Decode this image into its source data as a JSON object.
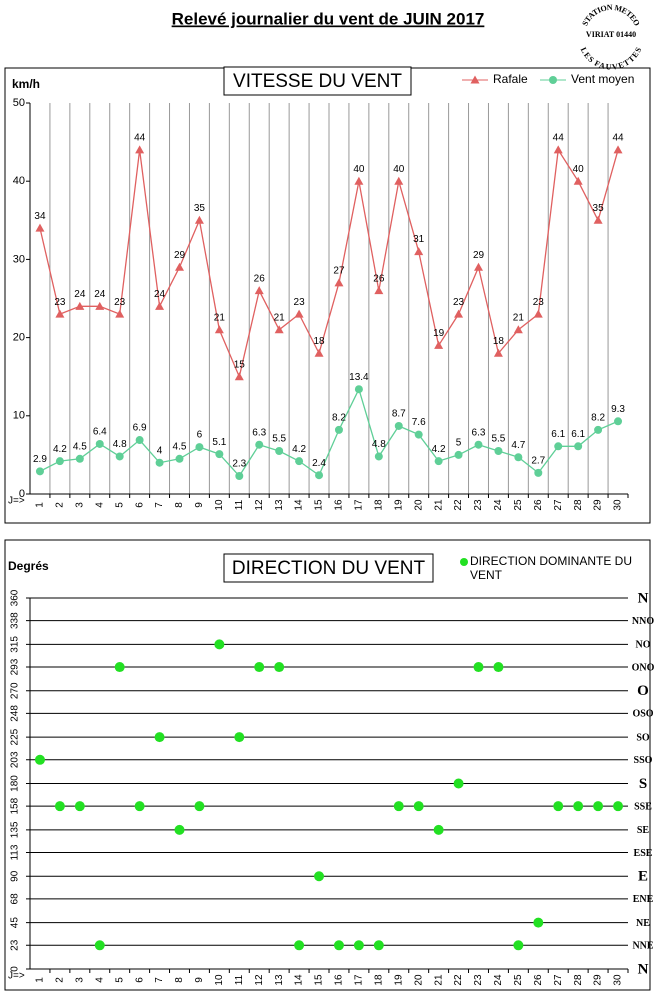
{
  "title": "Relevé journalier du vent de JUIN 2017",
  "stamp": {
    "top": "STATION METEO",
    "middle": "VIRIAT 01440",
    "bottom": "LES FAUVETTES"
  },
  "chart_data": [
    {
      "type": "line",
      "title": "VITESSE DU VENT",
      "y_label": "km/h",
      "x_prefix": "J=>",
      "categories": [
        "1",
        "2",
        "3",
        "4",
        "5",
        "6",
        "7",
        "8",
        "9",
        "10",
        "11",
        "12",
        "13",
        "14",
        "15",
        "16",
        "17",
        "18",
        "19",
        "20",
        "21",
        "22",
        "23",
        "24",
        "25",
        "26",
        "27",
        "28",
        "29",
        "30"
      ],
      "series": [
        {
          "name": "Rafale",
          "color": "#e06060",
          "marker": "triangle",
          "values": [
            34,
            23,
            24,
            24,
            23,
            44,
            24,
            29,
            35,
            21,
            15,
            26,
            21,
            23,
            18,
            27,
            40,
            26,
            40,
            31,
            19,
            23,
            29,
            18,
            21,
            23,
            44,
            40,
            35,
            44
          ]
        },
        {
          "name": "Vent moyen",
          "color": "#5fcf97",
          "marker": "circle",
          "values": [
            2.9,
            4.2,
            4.5,
            6.4,
            4.8,
            6.9,
            4,
            4.5,
            6,
            5.1,
            2.3,
            6.3,
            5.5,
            4.2,
            2.4,
            8.2,
            13.4,
            4.8,
            8.7,
            7.6,
            4.2,
            5,
            6.3,
            5.5,
            4.7,
            2.7,
            6.1,
            6.1,
            8.2,
            9.3
          ]
        }
      ],
      "ylim": [
        0,
        50
      ],
      "yticks": [
        0,
        10,
        20,
        30,
        40,
        50
      ],
      "grid": "x"
    },
    {
      "type": "scatter",
      "title": "DIRECTION DU VENT",
      "y_label": "Degrés",
      "x_prefix": "J=>",
      "categories": [
        "1",
        "2",
        "3",
        "4",
        "5",
        "6",
        "7",
        "8",
        "9",
        "10",
        "11",
        "12",
        "13",
        "14",
        "15",
        "16",
        "17",
        "18",
        "19",
        "20",
        "21",
        "22",
        "23",
        "24",
        "25",
        "26",
        "27",
        "28",
        "29",
        "30"
      ],
      "series": [
        {
          "name": "DIRECTION DOMINANTE DU VENT",
          "color": "#22e022",
          "marker": "circle",
          "values": [
            203,
            158,
            158,
            23,
            293,
            158,
            225,
            135,
            158,
            315,
            225,
            293,
            293,
            23,
            90,
            23,
            23,
            23,
            158,
            158,
            135,
            180,
            293,
            293,
            23,
            45,
            158,
            158,
            158,
            158
          ]
        }
      ],
      "ylim": [
        0,
        360
      ],
      "yticks": [
        0,
        23,
        45,
        68,
        90,
        113,
        135,
        158,
        180,
        203,
        225,
        248,
        270,
        293,
        315,
        338,
        360
      ],
      "grid": "y",
      "right_labels": [
        "N",
        "NNE",
        "NE",
        "ENE",
        "E",
        "ESE",
        "SE",
        "SSE",
        "S",
        "SSO",
        "SO",
        "OSO",
        "O",
        "ONO",
        "NO",
        "NNO",
        "N"
      ]
    }
  ]
}
